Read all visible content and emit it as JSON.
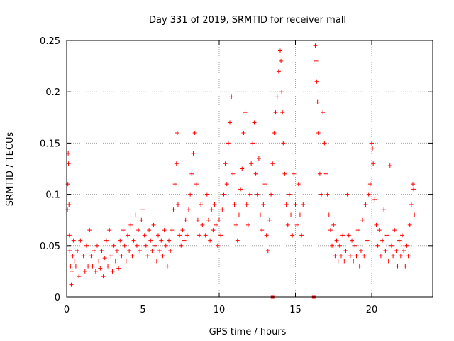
{
  "chart_data": {
    "type": "scatter",
    "title": "Day 331 of 2019, SRMTID for receiver mall",
    "xlabel": "GPS time / hours",
    "ylabel": "SRMTID / TECUs",
    "xlim": [
      0,
      24
    ],
    "ylim": [
      0,
      0.25
    ],
    "x_ticks": [
      "0",
      "5",
      "10",
      "15",
      "20"
    ],
    "x_tick_values": [
      0,
      5,
      10,
      15,
      20
    ],
    "y_ticks": [
      "0",
      "0.05",
      "0.1",
      "0.15",
      "0.2",
      "0.25"
    ],
    "y_tick_values": [
      0,
      0.05,
      0.1,
      0.15,
      0.2,
      0.25
    ],
    "grid": true,
    "marker": "+",
    "color": "#ff0000",
    "gap_markers_x": [
      13.5,
      16.2
    ],
    "series": [
      {
        "name": "SRMTID",
        "points": [
          [
            0.05,
            0.085
          ],
          [
            0.08,
            0.11
          ],
          [
            0.1,
            0.14
          ],
          [
            0.12,
            0.13
          ],
          [
            0.15,
            0.09
          ],
          [
            0.18,
            0.06
          ],
          [
            0.2,
            0.045
          ],
          [
            0.25,
            0.03
          ],
          [
            0.3,
            0.012
          ],
          [
            0.35,
            0.025
          ],
          [
            0.4,
            0.04
          ],
          [
            0.45,
            0.055
          ],
          [
            0.5,
            0.035
          ],
          [
            0.6,
            0.03
          ],
          [
            0.7,
            0.045
          ],
          [
            0.8,
            0.02
          ],
          [
            0.9,
            0.055
          ],
          [
            1.0,
            0.035
          ],
          [
            1.1,
            0.04
          ],
          [
            1.2,
            0.025
          ],
          [
            1.3,
            0.05
          ],
          [
            1.4,
            0.03
          ],
          [
            1.5,
            0.065
          ],
          [
            1.6,
            0.04
          ],
          [
            1.7,
            0.03
          ],
          [
            1.8,
            0.045
          ],
          [
            1.9,
            0.025
          ],
          [
            2.0,
            0.05
          ],
          [
            2.1,
            0.035
          ],
          [
            2.2,
            0.028
          ],
          [
            2.3,
            0.045
          ],
          [
            2.4,
            0.02
          ],
          [
            2.5,
            0.038
          ],
          [
            2.6,
            0.055
          ],
          [
            2.7,
            0.03
          ],
          [
            2.8,
            0.065
          ],
          [
            2.9,
            0.04
          ],
          [
            3.0,
            0.025
          ],
          [
            3.1,
            0.05
          ],
          [
            3.2,
            0.035
          ],
          [
            3.3,
            0.045
          ],
          [
            3.4,
            0.028
          ],
          [
            3.5,
            0.055
          ],
          [
            3.6,
            0.04
          ],
          [
            3.7,
            0.065
          ],
          [
            3.8,
            0.05
          ],
          [
            3.9,
            0.035
          ],
          [
            4.0,
            0.06
          ],
          [
            4.1,
            0.045
          ],
          [
            4.2,
            0.07
          ],
          [
            4.3,
            0.04
          ],
          [
            4.4,
            0.055
          ],
          [
            4.5,
            0.08
          ],
          [
            4.6,
            0.05
          ],
          [
            4.7,
            0.065
          ],
          [
            4.8,
            0.045
          ],
          [
            4.9,
            0.075
          ],
          [
            5.0,
            0.085
          ],
          [
            5.1,
            0.06
          ],
          [
            5.2,
            0.05
          ],
          [
            5.3,
            0.04
          ],
          [
            5.4,
            0.065
          ],
          [
            5.5,
            0.055
          ],
          [
            5.6,
            0.045
          ],
          [
            5.7,
            0.07
          ],
          [
            5.8,
            0.05
          ],
          [
            5.9,
            0.035
          ],
          [
            6.0,
            0.06
          ],
          [
            6.1,
            0.045
          ],
          [
            6.2,
            0.055
          ],
          [
            6.3,
            0.04
          ],
          [
            6.4,
            0.065
          ],
          [
            6.5,
            0.05
          ],
          [
            6.6,
            0.03
          ],
          [
            6.7,
            0.055
          ],
          [
            6.8,
            0.045
          ],
          [
            6.9,
            0.065
          ],
          [
            7.0,
            0.085
          ],
          [
            7.1,
            0.11
          ],
          [
            7.2,
            0.13
          ],
          [
            7.25,
            0.16
          ],
          [
            7.3,
            0.09
          ],
          [
            7.4,
            0.06
          ],
          [
            7.5,
            0.05
          ],
          [
            7.6,
            0.065
          ],
          [
            7.7,
            0.055
          ],
          [
            7.8,
            0.075
          ],
          [
            7.9,
            0.06
          ],
          [
            8.0,
            0.085
          ],
          [
            8.1,
            0.1
          ],
          [
            8.2,
            0.12
          ],
          [
            8.3,
            0.14
          ],
          [
            8.4,
            0.16
          ],
          [
            8.5,
            0.11
          ],
          [
            8.6,
            0.075
          ],
          [
            8.7,
            0.06
          ],
          [
            8.8,
            0.09
          ],
          [
            8.9,
            0.07
          ],
          [
            9.0,
            0.08
          ],
          [
            9.1,
            0.06
          ],
          [
            9.2,
            0.1
          ],
          [
            9.3,
            0.075
          ],
          [
            9.4,
            0.055
          ],
          [
            9.5,
            0.085
          ],
          [
            9.6,
            0.065
          ],
          [
            9.7,
            0.09
          ],
          [
            9.8,
            0.07
          ],
          [
            9.9,
            0.05
          ],
          [
            10.0,
            0.075
          ],
          [
            10.1,
            0.06
          ],
          [
            10.2,
            0.085
          ],
          [
            10.3,
            0.1
          ],
          [
            10.4,
            0.13
          ],
          [
            10.5,
            0.11
          ],
          [
            10.6,
            0.15
          ],
          [
            10.7,
            0.17
          ],
          [
            10.8,
            0.195
          ],
          [
            10.9,
            0.12
          ],
          [
            11.0,
            0.09
          ],
          [
            11.1,
            0.07
          ],
          [
            11.2,
            0.055
          ],
          [
            11.3,
            0.08
          ],
          [
            11.4,
            0.105
          ],
          [
            11.5,
            0.125
          ],
          [
            11.6,
            0.16
          ],
          [
            11.7,
            0.18
          ],
          [
            11.8,
            0.09
          ],
          [
            11.9,
            0.07
          ],
          [
            12.0,
            0.1
          ],
          [
            12.1,
            0.13
          ],
          [
            12.2,
            0.15
          ],
          [
            12.3,
            0.17
          ],
          [
            12.4,
            0.12
          ],
          [
            12.5,
            0.1
          ],
          [
            12.6,
            0.135
          ],
          [
            12.7,
            0.08
          ],
          [
            12.8,
            0.065
          ],
          [
            12.9,
            0.09
          ],
          [
            13.0,
            0.11
          ],
          [
            13.1,
            0.06
          ],
          [
            13.2,
            0.045
          ],
          [
            13.3,
            0.075
          ],
          [
            13.4,
            0.1
          ],
          [
            13.5,
            0.13
          ],
          [
            13.6,
            0.16
          ],
          [
            13.7,
            0.18
          ],
          [
            13.8,
            0.195
          ],
          [
            13.9,
            0.22
          ],
          [
            14.0,
            0.24
          ],
          [
            14.05,
            0.23
          ],
          [
            14.1,
            0.2
          ],
          [
            14.15,
            0.18
          ],
          [
            14.2,
            0.15
          ],
          [
            14.3,
            0.12
          ],
          [
            14.4,
            0.09
          ],
          [
            14.5,
            0.07
          ],
          [
            14.6,
            0.1
          ],
          [
            14.7,
            0.08
          ],
          [
            14.8,
            0.06
          ],
          [
            14.9,
            0.12
          ],
          [
            15.0,
            0.09
          ],
          [
            15.1,
            0.07
          ],
          [
            15.2,
            0.11
          ],
          [
            15.3,
            0.08
          ],
          [
            15.4,
            0.06
          ],
          [
            15.5,
            0.09
          ],
          [
            16.3,
            0.245
          ],
          [
            16.35,
            0.23
          ],
          [
            16.4,
            0.21
          ],
          [
            16.45,
            0.19
          ],
          [
            16.5,
            0.16
          ],
          [
            16.6,
            0.12
          ],
          [
            16.7,
            0.1
          ],
          [
            16.8,
            0.18
          ],
          [
            16.9,
            0.15
          ],
          [
            17.0,
            0.12
          ],
          [
            17.1,
            0.1
          ],
          [
            17.2,
            0.08
          ],
          [
            17.3,
            0.065
          ],
          [
            17.4,
            0.05
          ],
          [
            17.5,
            0.07
          ],
          [
            17.6,
            0.04
          ],
          [
            17.7,
            0.055
          ],
          [
            17.8,
            0.035
          ],
          [
            17.9,
            0.05
          ],
          [
            18.0,
            0.04
          ],
          [
            18.1,
            0.06
          ],
          [
            18.2,
            0.035
          ],
          [
            18.3,
            0.045
          ],
          [
            18.4,
            0.1
          ],
          [
            18.5,
            0.06
          ],
          [
            18.6,
            0.04
          ],
          [
            18.7,
            0.055
          ],
          [
            18.8,
            0.035
          ],
          [
            18.9,
            0.05
          ],
          [
            19.0,
            0.04
          ],
          [
            19.1,
            0.065
          ],
          [
            19.2,
            0.03
          ],
          [
            19.3,
            0.045
          ],
          [
            19.4,
            0.075
          ],
          [
            19.5,
            0.04
          ],
          [
            19.6,
            0.09
          ],
          [
            19.7,
            0.055
          ],
          [
            19.8,
            0.1
          ],
          [
            19.9,
            0.11
          ],
          [
            20.0,
            0.15
          ],
          [
            20.05,
            0.145
          ],
          [
            20.1,
            0.13
          ],
          [
            20.2,
            0.095
          ],
          [
            20.3,
            0.07
          ],
          [
            20.4,
            0.05
          ],
          [
            20.5,
            0.065
          ],
          [
            20.6,
            0.04
          ],
          [
            20.7,
            0.055
          ],
          [
            20.8,
            0.085
          ],
          [
            20.9,
            0.045
          ],
          [
            21.0,
            0.06
          ],
          [
            21.1,
            0.035
          ],
          [
            21.2,
            0.128
          ],
          [
            21.3,
            0.05
          ],
          [
            21.4,
            0.04
          ],
          [
            21.5,
            0.065
          ],
          [
            21.6,
            0.045
          ],
          [
            21.7,
            0.03
          ],
          [
            21.8,
            0.055
          ],
          [
            21.9,
            0.04
          ],
          [
            22.0,
            0.06
          ],
          [
            22.1,
            0.045
          ],
          [
            22.2,
            0.03
          ],
          [
            22.3,
            0.05
          ],
          [
            22.4,
            0.04
          ],
          [
            22.5,
            0.07
          ],
          [
            22.6,
            0.09
          ],
          [
            22.7,
            0.11
          ],
          [
            22.75,
            0.105
          ],
          [
            22.8,
            0.08
          ]
        ]
      }
    ]
  }
}
